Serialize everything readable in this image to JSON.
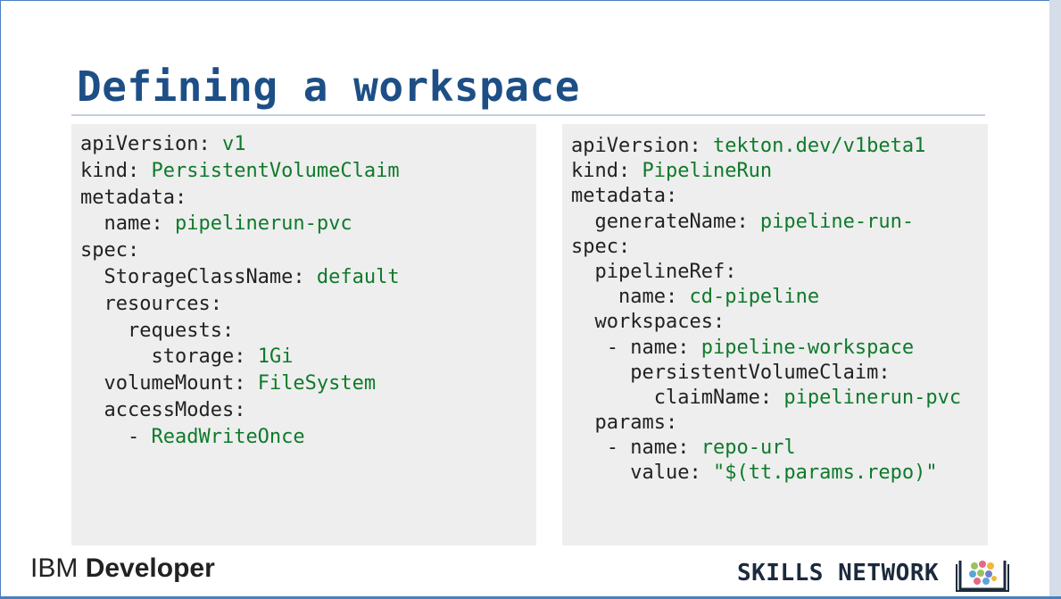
{
  "slide": {
    "title": "Defining a workspace"
  },
  "left_code": {
    "lines": [
      {
        "indent": "",
        "key": "apiVersion:",
        "value": " v1"
      },
      {
        "indent": "",
        "key": "kind:",
        "value": " PersistentVolumeClaim"
      },
      {
        "indent": "",
        "key": "metadata:",
        "value": ""
      },
      {
        "indent": "  ",
        "key": "name:",
        "value": " pipelinerun-pvc"
      },
      {
        "indent": "",
        "key": "spec:",
        "value": ""
      },
      {
        "indent": "  ",
        "key": "StorageClassName:",
        "value": " default"
      },
      {
        "indent": "  ",
        "key": "resources:",
        "value": ""
      },
      {
        "indent": "    ",
        "key": "requests:",
        "value": ""
      },
      {
        "indent": "      ",
        "key": "storage:",
        "value": " 1Gi"
      },
      {
        "indent": "  ",
        "key": "volumeMount:",
        "value": " FileSystem"
      },
      {
        "indent": "  ",
        "key": "accessModes:",
        "value": ""
      },
      {
        "indent": "    ",
        "key": "-",
        "value": " ReadWriteOnce"
      }
    ]
  },
  "right_code": {
    "lines": [
      {
        "indent": "",
        "key": "apiVersion:",
        "value": " tekton.dev/v1beta1"
      },
      {
        "indent": "",
        "key": "kind:",
        "value": " PipelineRun"
      },
      {
        "indent": "",
        "key": "metadata:",
        "value": ""
      },
      {
        "indent": "  ",
        "key": "generateName:",
        "value": " pipeline-run-"
      },
      {
        "indent": "",
        "key": "spec:",
        "value": ""
      },
      {
        "indent": "  ",
        "key": "pipelineRef:",
        "value": ""
      },
      {
        "indent": "    ",
        "key": "name:",
        "value": " cd-pipeline"
      },
      {
        "indent": "  ",
        "key": "workspaces:",
        "value": ""
      },
      {
        "indent": "   ",
        "key": "- name:",
        "value": " pipeline-workspace"
      },
      {
        "indent": "     ",
        "key": "persistentVolumeClaim:",
        "value": ""
      },
      {
        "indent": "       ",
        "key": "claimName:",
        "value": " pipelinerun-pvc"
      },
      {
        "indent": "  ",
        "key": "params:",
        "value": ""
      },
      {
        "indent": "   ",
        "key": "- name:",
        "value": " repo-url"
      },
      {
        "indent": "     ",
        "key": "value:",
        "value": " \"$(tt.params.repo)\""
      }
    ]
  },
  "footer": {
    "ibm_brand": "IBM",
    "ibm_product": "Developer",
    "skills_network": "SKILLS NETWORK",
    "skills_icon": "book-icon"
  },
  "colors": {
    "title": "#1d4f86",
    "code_key": "#222222",
    "code_value": "#0f7a2a",
    "panel_bg": "#eeeeee"
  }
}
